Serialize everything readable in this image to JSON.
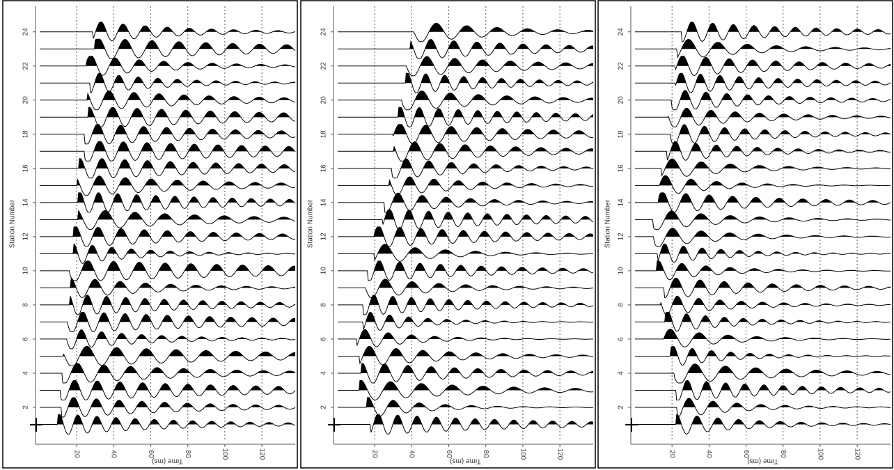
{
  "chart_data": [
    {
      "type": "seismic",
      "xlabel": "Time (ms)",
      "ylabel": "Station Number",
      "xlim": [
        0,
        138
      ],
      "ylim": [
        0,
        25.5
      ],
      "xticks": [
        20,
        40,
        60,
        80,
        100,
        120
      ],
      "yticks": [
        2,
        4,
        6,
        8,
        10,
        12,
        14,
        16,
        18,
        20,
        22,
        24
      ],
      "grid": true
    },
    {
      "type": "seismic",
      "xlabel": "Time (ms)",
      "ylabel": "Station Number",
      "xlim": [
        0,
        138
      ],
      "ylim": [
        0,
        25.5
      ],
      "xticks": [
        20,
        40,
        60,
        80,
        100,
        120
      ],
      "yticks": [
        2,
        4,
        6,
        8,
        10,
        12,
        14,
        16,
        18,
        20,
        22,
        24
      ],
      "grid": true
    },
    {
      "type": "seismic",
      "xlabel": "Time (ms)",
      "ylabel": "Station Number",
      "xlim": [
        0,
        138
      ],
      "ylim": [
        0,
        25.5
      ],
      "xticks": [
        20,
        40,
        60,
        80,
        100,
        120
      ],
      "yticks": [
        2,
        4,
        6,
        8,
        10,
        12,
        14,
        16,
        18,
        20,
        22,
        24
      ],
      "grid": true
    }
  ]
}
